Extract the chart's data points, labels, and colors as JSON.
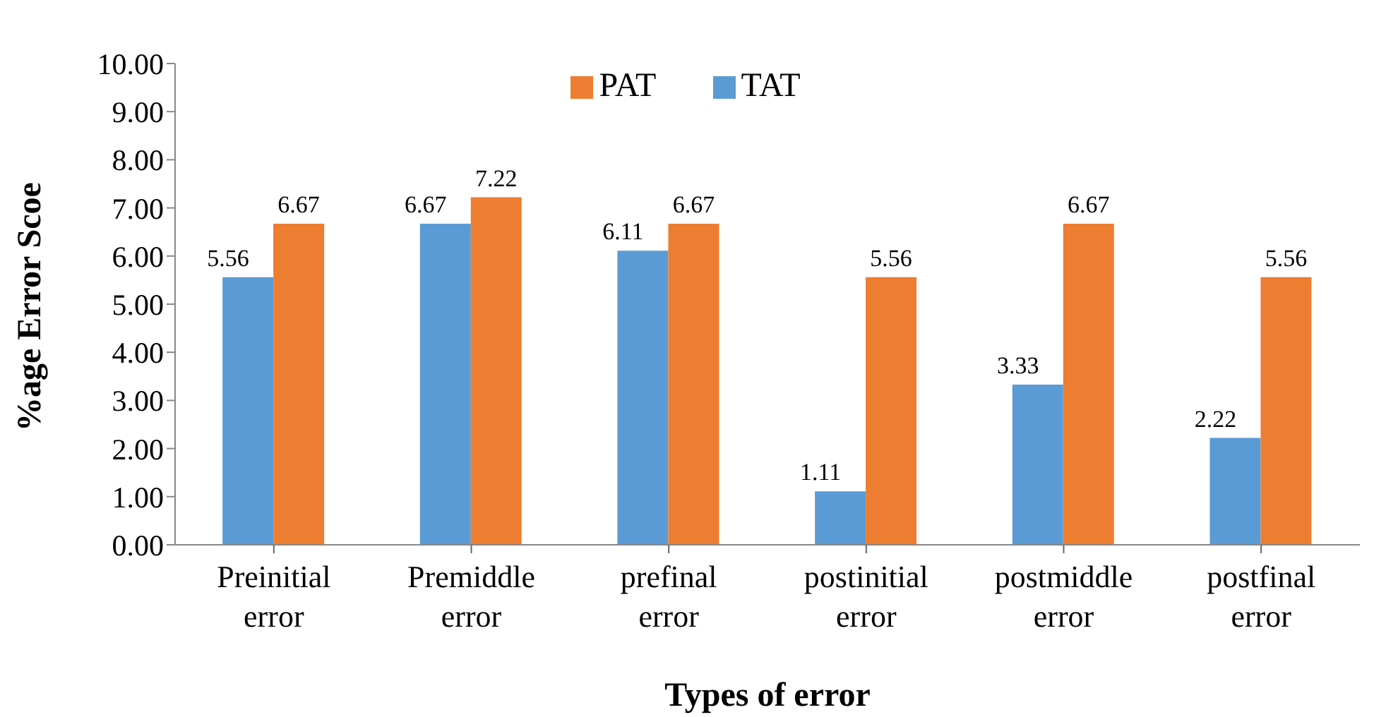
{
  "chart_data": {
    "type": "bar",
    "xlabel": "Types of error",
    "ylabel": "%age Error Scoe",
    "categories": [
      "Preinitial error",
      "Premiddle error",
      "prefinal error",
      "postinitial error",
      "postmiddle error",
      "postfinal error"
    ],
    "series": [
      {
        "name": "TAT",
        "color": "#5b9bd5",
        "values": [
          5.56,
          6.67,
          6.11,
          1.11,
          3.33,
          2.22
        ]
      },
      {
        "name": "PAT",
        "color": "#ed7d31",
        "values": [
          6.67,
          7.22,
          6.67,
          5.56,
          6.67,
          5.56
        ]
      }
    ],
    "ylim": [
      0,
      10
    ],
    "yticks": [
      {
        "value": 0,
        "label": "0.00"
      },
      {
        "value": 1,
        "label": "1.00"
      },
      {
        "value": 2,
        "label": "2.00"
      },
      {
        "value": 3,
        "label": "3.00"
      },
      {
        "value": 4,
        "label": "4.00"
      },
      {
        "value": 5,
        "label": "5.00"
      },
      {
        "value": 6,
        "label": "6.00"
      },
      {
        "value": 7,
        "label": "7.00"
      },
      {
        "value": 8,
        "label": "8.00"
      },
      {
        "value": 9,
        "label": "9.00"
      },
      {
        "value": 10,
        "label": "10.00"
      }
    ],
    "grid": false,
    "legend": "top",
    "data_labels": true
  }
}
